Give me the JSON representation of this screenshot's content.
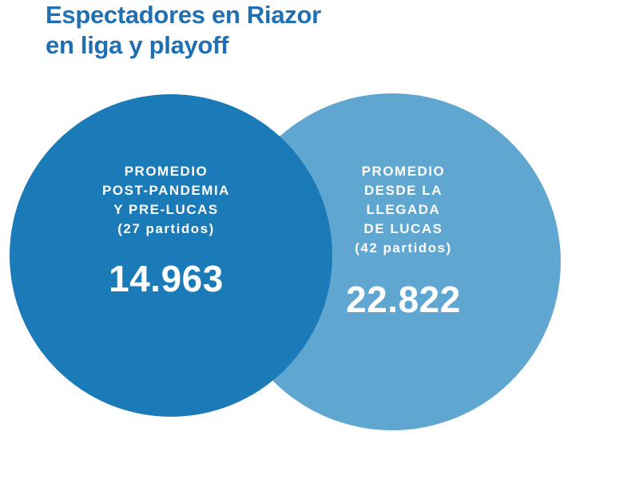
{
  "title": {
    "line1": "Espectadores en Riazor",
    "line2": "en liga y playoff"
  },
  "colors": {
    "title": "#1f6fb2",
    "left_bubble": "#1b7ab8",
    "right_bubble": "#5fa6d0",
    "text": "#ffffff"
  },
  "chart_data": {
    "type": "bubble",
    "title": "Espectadores en Riazor en liga y playoff",
    "series": [
      {
        "label_lines": [
          "PROMEDIO",
          "POST-PANDEMIA",
          "Y PRE-LUCAS",
          "(27 partidos)"
        ],
        "value": 14963,
        "value_label": "14.963",
        "matches": 27
      },
      {
        "label_lines": [
          "PROMEDIO",
          "DESDE LA",
          "LLEGADA",
          "DE LUCAS",
          "(42 partidos)"
        ],
        "value": 22822,
        "value_label": "22.822",
        "matches": 42
      }
    ]
  }
}
